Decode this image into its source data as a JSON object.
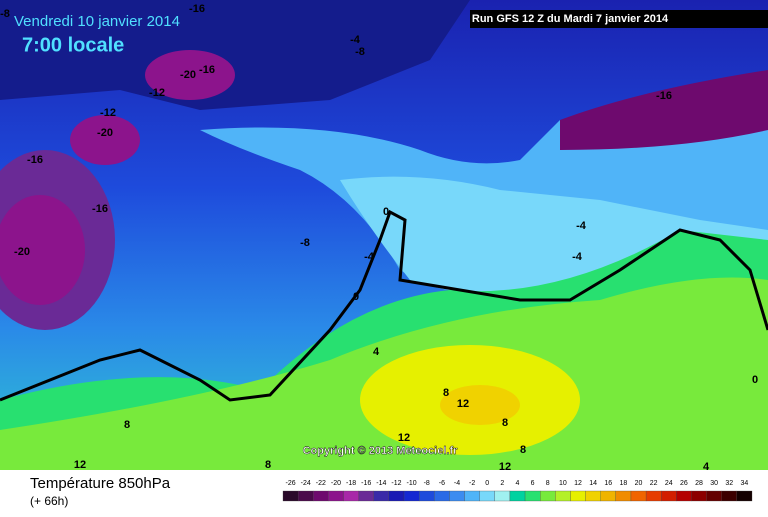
{
  "header": {
    "date": "Vendredi 10 janvier 2014",
    "time": "7:00 locale",
    "run": "Run GFS 12 Z du Mardi 7 janvier 2014"
  },
  "map": {
    "copyright": "Copyright © 2013 Meteociel.fr",
    "contour_labels": [
      -8,
      -16,
      -4,
      -8,
      -20,
      -16,
      -12,
      -12,
      -20,
      -16,
      -16,
      -20,
      -8,
      -4,
      0,
      0,
      -16,
      -4,
      -4,
      4,
      8,
      8,
      12,
      12,
      8,
      8,
      12,
      8,
      12,
      4,
      0
    ]
  },
  "footer": {
    "title": "Température 850hPa",
    "lead": "(+ 66h)"
  },
  "legend": {
    "ticks": [
      -26,
      -24,
      -22,
      -20,
      -18,
      -16,
      -14,
      -12,
      -10,
      -8,
      -6,
      -4,
      -2,
      0,
      2,
      4,
      6,
      8,
      10,
      12,
      14,
      16,
      18,
      20,
      22,
      24,
      26,
      28,
      30,
      32,
      34
    ],
    "colors": [
      "#2a0a2a",
      "#4a0a4a",
      "#6e0a6e",
      "#8c148c",
      "#a828a8",
      "#6a2a96",
      "#3a2aa8",
      "#1a1ab4",
      "#1428d2",
      "#1e4bdc",
      "#2a6ae6",
      "#3c8cf0",
      "#50b4f8",
      "#78d8fa",
      "#a0f0f0",
      "#00d2a0",
      "#28e070",
      "#78ea3c",
      "#b4f028",
      "#e6f000",
      "#f0d200",
      "#f0b400",
      "#f08c00",
      "#f06400",
      "#e63c00",
      "#d21e00",
      "#b40000",
      "#8c0000",
      "#640000",
      "#3c0000",
      "#140000"
    ]
  }
}
